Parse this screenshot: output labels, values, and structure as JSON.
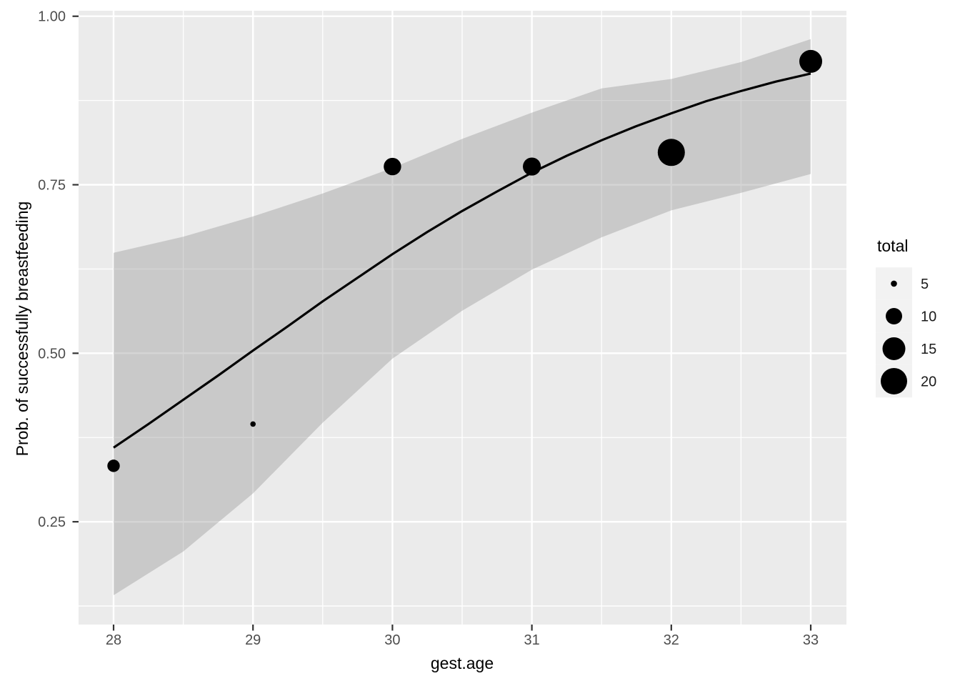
{
  "chart_data": {
    "type": "scatter",
    "title": "",
    "xlabel": "gest.age",
    "ylabel": "Prob. of successfully breastfeeding",
    "x_ticks": [
      28,
      29,
      30,
      31,
      32,
      33
    ],
    "x_tick_labels": [
      "28",
      "29",
      "30",
      "31",
      "32",
      "33"
    ],
    "x_minor_ticks": [
      28.5,
      29.5,
      30.5,
      31.5,
      32.5
    ],
    "y_ticks": [
      0.25,
      0.5,
      0.75,
      1.0
    ],
    "y_tick_labels": [
      "0.25",
      "0.50",
      "0.75",
      "1.00"
    ],
    "y_minor_ticks": [
      0.125,
      0.375,
      0.625,
      0.875
    ],
    "xlim": [
      27.749,
      33.256
    ],
    "ylim": [
      0.0975,
      1.0082
    ],
    "grid": true,
    "legend_position": "right",
    "points": [
      {
        "x": 28,
        "prob": 0.333,
        "total": 8,
        "radius_px": 8.7
      },
      {
        "x": 29,
        "prob": 0.395,
        "total": 5,
        "radius_px": 3.8
      },
      {
        "x": 30,
        "prob": 0.777,
        "total": 11,
        "radius_px": 12.2
      },
      {
        "x": 31,
        "prob": 0.777,
        "total": 11,
        "radius_px": 12.6
      },
      {
        "x": 32,
        "prob": 0.798,
        "total": 20,
        "radius_px": 19.0
      },
      {
        "x": 33,
        "prob": 0.933,
        "total": 15,
        "radius_px": 16.0
      }
    ],
    "fit_line": {
      "x": [
        28,
        28.25,
        28.5,
        28.75,
        29,
        29.25,
        29.5,
        29.75,
        30,
        30.25,
        30.5,
        30.75,
        31,
        31.25,
        31.5,
        31.75,
        32,
        32.25,
        32.5,
        32.75,
        33
      ],
      "prob": [
        0.36,
        0.395,
        0.431,
        0.467,
        0.504,
        0.54,
        0.577,
        0.612,
        0.647,
        0.68,
        0.711,
        0.74,
        0.768,
        0.793,
        0.816,
        0.837,
        0.856,
        0.874,
        0.889,
        0.903,
        0.915
      ]
    },
    "ribbon": {
      "x": [
        28,
        28.5,
        29,
        29.5,
        30,
        30.5,
        31,
        31.5,
        32,
        32.5,
        33
      ],
      "upper": [
        0.649,
        0.673,
        0.703,
        0.737,
        0.775,
        0.818,
        0.857,
        0.893,
        0.907,
        0.932,
        0.966
      ],
      "lower": [
        0.141,
        0.206,
        0.292,
        0.397,
        0.492,
        0.563,
        0.624,
        0.672,
        0.712,
        0.738,
        0.766
      ]
    },
    "legend": {
      "title": "total",
      "entries": [
        {
          "label": "5",
          "radius_px": 4.3
        },
        {
          "label": "10",
          "radius_px": 11.5
        },
        {
          "label": "15",
          "radius_px": 16.0
        },
        {
          "label": "20",
          "radius_px": 18.5
        }
      ]
    },
    "colors": {
      "background": "#FFFFFF",
      "panel_bg": "#EBEBEB",
      "grid": "#FFFFFF",
      "ribbon": "#9C9C9C",
      "ribbon_opacity": 0.42,
      "line": "#000000",
      "point": "#000000",
      "tick_mark": "#333333",
      "tick_label": "#4D4D4D",
      "axis_title": "#000000",
      "legend_key_bg": "#F2F2F2",
      "legend_text": "#1A1A1A"
    }
  }
}
